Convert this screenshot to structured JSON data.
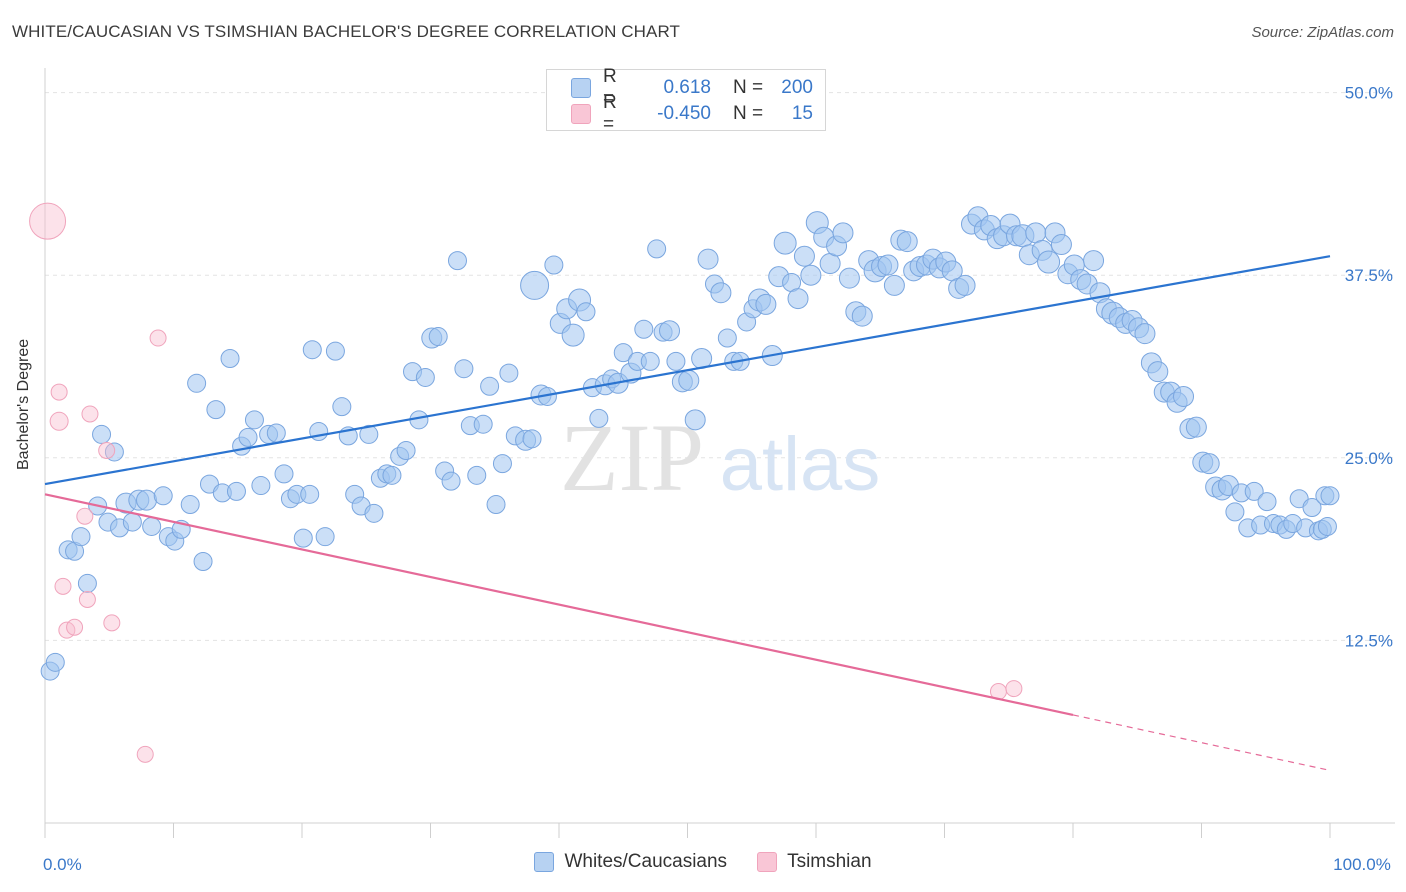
{
  "title": "WHITE/CAUCASIAN VS TSIMSHIAN BACHELOR'S DEGREE CORRELATION CHART",
  "source": "Source: ZipAtlas.com",
  "watermark": {
    "zip": "ZIP",
    "atlas": "atlas"
  },
  "colors": {
    "blue_fill": "rgba(160,196,240,0.55)",
    "blue_stroke": "#7aa6df",
    "blue_line": "#2b74d0",
    "pink_fill": "rgba(248,190,208,0.45)",
    "pink_stroke": "#f0a4bc",
    "pink_line": "#e56a98",
    "tick_text": "#3a78c9",
    "grid": "#e3e3e3"
  },
  "legend": {
    "rows": [
      {
        "r_label": "R =",
        "r_value": "0.618",
        "n_label": "N =",
        "n_value": "200"
      },
      {
        "r_label": "R =",
        "r_value": "-0.450",
        "n_label": "N =",
        "n_value": "15"
      }
    ]
  },
  "bottom_legend": {
    "white": "Whites/Caucasians",
    "tsimshian": "Tsimshian"
  },
  "chart_data": {
    "type": "scatter",
    "xlabel": "",
    "ylabel": "Bachelor's Degree",
    "xlim": [
      0,
      100
    ],
    "ylim": [
      0,
      51
    ],
    "x_tick_labels": [
      {
        "value": 0,
        "label": "0.0%"
      },
      {
        "value": 100,
        "label": "100.0%"
      }
    ],
    "y_ticks": [
      {
        "value": 12.5,
        "label": "12.5%"
      },
      {
        "value": 25.0,
        "label": "25.0%"
      },
      {
        "value": 37.5,
        "label": "37.5%"
      },
      {
        "value": 50.0,
        "label": "50.0%"
      }
    ],
    "grid": true,
    "series": [
      {
        "name": "Whites/Caucasians",
        "trend": {
          "x": [
            0,
            100
          ],
          "y": [
            23.2,
            38.8
          ]
        },
        "points": [
          [
            0.4,
            10.4,
            9
          ],
          [
            0.8,
            11.0,
            9
          ],
          [
            1.8,
            18.7,
            9
          ],
          [
            2.3,
            18.6,
            9
          ],
          [
            2.8,
            19.6,
            9
          ],
          [
            3.3,
            16.4,
            9
          ],
          [
            4.1,
            21.7,
            9
          ],
          [
            4.4,
            26.6,
            9
          ],
          [
            4.9,
            20.6,
            9
          ],
          [
            5.4,
            25.4,
            9
          ],
          [
            5.8,
            20.2,
            9
          ],
          [
            6.3,
            21.9,
            10
          ],
          [
            6.8,
            20.6,
            9
          ],
          [
            7.3,
            22.1,
            10
          ],
          [
            7.9,
            22.1,
            10
          ],
          [
            8.3,
            20.3,
            9
          ],
          [
            9.2,
            22.4,
            9
          ],
          [
            9.6,
            19.6,
            9
          ],
          [
            10.1,
            19.3,
            9
          ],
          [
            10.6,
            20.1,
            9
          ],
          [
            11.3,
            21.8,
            9
          ],
          [
            11.8,
            30.1,
            9
          ],
          [
            12.3,
            17.9,
            9
          ],
          [
            12.8,
            23.2,
            9
          ],
          [
            13.3,
            28.3,
            9
          ],
          [
            13.8,
            22.6,
            9
          ],
          [
            14.4,
            31.8,
            9
          ],
          [
            14.9,
            22.7,
            9
          ],
          [
            15.3,
            25.8,
            9
          ],
          [
            15.8,
            26.4,
            9
          ],
          [
            16.3,
            27.6,
            9
          ],
          [
            16.8,
            23.1,
            9
          ],
          [
            17.4,
            26.6,
            9
          ],
          [
            18.0,
            26.7,
            9
          ],
          [
            18.6,
            23.9,
            9
          ],
          [
            19.1,
            22.2,
            9
          ],
          [
            19.6,
            22.5,
            9
          ],
          [
            20.1,
            19.5,
            9
          ],
          [
            20.6,
            22.5,
            9
          ],
          [
            20.8,
            32.4,
            9
          ],
          [
            21.3,
            26.8,
            9
          ],
          [
            21.8,
            19.6,
            9
          ],
          [
            22.6,
            32.3,
            9
          ],
          [
            23.1,
            28.5,
            9
          ],
          [
            23.6,
            26.5,
            9
          ],
          [
            24.1,
            22.5,
            9
          ],
          [
            24.6,
            21.7,
            9
          ],
          [
            25.2,
            26.6,
            9
          ],
          [
            25.6,
            21.2,
            9
          ],
          [
            26.1,
            23.6,
            9
          ],
          [
            26.6,
            23.9,
            9
          ],
          [
            27.0,
            23.8,
            9
          ],
          [
            27.6,
            25.1,
            9
          ],
          [
            28.1,
            25.5,
            9
          ],
          [
            28.6,
            30.9,
            9
          ],
          [
            29.1,
            27.6,
            9
          ],
          [
            29.6,
            30.5,
            9
          ],
          [
            30.1,
            33.2,
            10
          ],
          [
            30.6,
            33.3,
            9
          ],
          [
            31.1,
            24.1,
            9
          ],
          [
            31.6,
            23.4,
            9
          ],
          [
            32.1,
            38.5,
            9
          ],
          [
            32.6,
            31.1,
            9
          ],
          [
            33.1,
            27.2,
            9
          ],
          [
            33.6,
            23.8,
            9
          ],
          [
            34.1,
            27.3,
            9
          ],
          [
            34.6,
            29.9,
            9
          ],
          [
            35.1,
            21.8,
            9
          ],
          [
            35.6,
            24.6,
            9
          ],
          [
            36.1,
            30.8,
            9
          ],
          [
            36.6,
            26.5,
            9
          ],
          [
            37.4,
            26.2,
            10
          ],
          [
            37.9,
            26.3,
            9
          ],
          [
            38.1,
            36.8,
            14
          ],
          [
            38.6,
            29.3,
            10
          ],
          [
            39.1,
            29.2,
            9
          ],
          [
            39.6,
            38.2,
            9
          ],
          [
            40.1,
            34.2,
            10
          ],
          [
            40.6,
            35.2,
            10
          ],
          [
            41.1,
            33.4,
            11
          ],
          [
            41.6,
            35.8,
            11
          ],
          [
            42.1,
            35.0,
            9
          ],
          [
            42.6,
            29.8,
            9
          ],
          [
            43.1,
            27.7,
            9
          ],
          [
            43.6,
            30.0,
            10
          ],
          [
            44.1,
            30.4,
            9
          ],
          [
            44.6,
            30.1,
            10
          ],
          [
            45.0,
            32.2,
            9
          ],
          [
            45.6,
            30.8,
            10
          ],
          [
            46.1,
            31.6,
            9
          ],
          [
            46.6,
            33.8,
            9
          ],
          [
            47.1,
            31.6,
            9
          ],
          [
            47.6,
            39.3,
            9
          ],
          [
            48.1,
            33.6,
            9
          ],
          [
            48.6,
            33.7,
            10
          ],
          [
            49.1,
            31.6,
            9
          ],
          [
            49.6,
            30.2,
            10
          ],
          [
            50.1,
            30.3,
            10
          ],
          [
            50.6,
            27.6,
            10
          ],
          [
            51.1,
            31.8,
            10
          ],
          [
            51.6,
            38.6,
            10
          ],
          [
            52.1,
            36.9,
            9
          ],
          [
            52.6,
            36.3,
            10
          ],
          [
            53.1,
            33.2,
            9
          ],
          [
            53.6,
            31.6,
            9
          ],
          [
            54.1,
            31.6,
            9
          ],
          [
            54.6,
            34.3,
            9
          ],
          [
            55.1,
            35.2,
            9
          ],
          [
            55.6,
            35.8,
            11
          ],
          [
            56.1,
            35.5,
            10
          ],
          [
            56.6,
            32.0,
            10
          ],
          [
            57.1,
            37.4,
            10
          ],
          [
            57.6,
            39.7,
            11
          ],
          [
            58.1,
            37.0,
            9
          ],
          [
            58.6,
            35.9,
            10
          ],
          [
            59.1,
            38.8,
            10
          ],
          [
            59.6,
            37.5,
            10
          ],
          [
            60.1,
            41.1,
            11
          ],
          [
            60.6,
            40.1,
            10
          ],
          [
            61.1,
            38.3,
            10
          ],
          [
            61.6,
            39.5,
            10
          ],
          [
            62.1,
            40.4,
            10
          ],
          [
            62.6,
            37.3,
            10
          ],
          [
            63.1,
            35.0,
            10
          ],
          [
            63.6,
            34.7,
            10
          ],
          [
            64.1,
            38.5,
            10
          ],
          [
            64.6,
            37.8,
            11
          ],
          [
            65.1,
            38.1,
            10
          ],
          [
            65.6,
            38.2,
            10
          ],
          [
            66.1,
            36.8,
            10
          ],
          [
            66.6,
            39.9,
            10
          ],
          [
            67.1,
            39.8,
            10
          ],
          [
            67.6,
            37.8,
            10
          ],
          [
            68.1,
            38.1,
            10
          ],
          [
            68.6,
            38.2,
            10
          ],
          [
            69.1,
            38.6,
            10
          ],
          [
            69.6,
            38.0,
            10
          ],
          [
            70.1,
            38.4,
            10
          ],
          [
            70.6,
            37.8,
            10
          ],
          [
            71.1,
            36.6,
            10
          ],
          [
            71.6,
            36.8,
            10
          ],
          [
            72.1,
            41.0,
            10
          ],
          [
            72.6,
            41.5,
            10
          ],
          [
            73.1,
            40.6,
            10
          ],
          [
            73.6,
            40.9,
            10
          ],
          [
            74.1,
            40.0,
            10
          ],
          [
            74.6,
            40.2,
            10
          ],
          [
            75.1,
            41.0,
            10
          ],
          [
            75.6,
            40.2,
            10
          ],
          [
            76.1,
            40.2,
            11
          ],
          [
            76.6,
            38.9,
            10
          ],
          [
            77.1,
            40.4,
            10
          ],
          [
            77.6,
            39.2,
            10
          ],
          [
            78.1,
            38.4,
            11
          ],
          [
            78.6,
            40.4,
            10
          ],
          [
            79.1,
            39.6,
            10
          ],
          [
            79.6,
            37.6,
            10
          ],
          [
            80.1,
            38.2,
            10
          ],
          [
            80.6,
            37.2,
            10
          ],
          [
            81.1,
            36.9,
            10
          ],
          [
            81.6,
            38.5,
            10
          ],
          [
            82.1,
            36.3,
            10
          ],
          [
            82.6,
            35.2,
            10
          ],
          [
            83.1,
            34.9,
            11
          ],
          [
            83.6,
            34.6,
            10
          ],
          [
            84.1,
            34.2,
            10
          ],
          [
            84.6,
            34.4,
            10
          ],
          [
            85.1,
            33.9,
            10
          ],
          [
            85.6,
            33.5,
            10
          ],
          [
            86.1,
            31.5,
            10
          ],
          [
            86.6,
            30.9,
            10
          ],
          [
            87.1,
            29.5,
            10
          ],
          [
            87.6,
            29.5,
            10
          ],
          [
            88.1,
            28.8,
            10
          ],
          [
            88.6,
            29.2,
            10
          ],
          [
            89.1,
            27.0,
            10
          ],
          [
            89.6,
            27.1,
            10
          ],
          [
            90.1,
            24.7,
            10
          ],
          [
            90.6,
            24.6,
            10
          ],
          [
            91.1,
            23.0,
            10
          ],
          [
            91.6,
            22.8,
            10
          ],
          [
            92.1,
            23.1,
            10
          ],
          [
            92.6,
            21.3,
            9
          ],
          [
            93.1,
            22.6,
            9
          ],
          [
            93.6,
            20.2,
            9
          ],
          [
            94.1,
            22.7,
            9
          ],
          [
            94.6,
            20.4,
            9
          ],
          [
            95.1,
            22.0,
            9
          ],
          [
            95.6,
            20.5,
            9
          ],
          [
            96.1,
            20.4,
            9
          ],
          [
            96.6,
            20.1,
            9
          ],
          [
            97.1,
            20.5,
            9
          ],
          [
            97.6,
            22.2,
            9
          ],
          [
            98.1,
            20.2,
            9
          ],
          [
            98.6,
            21.6,
            9
          ],
          [
            99.1,
            20.0,
            9
          ],
          [
            99.4,
            20.1,
            9
          ],
          [
            99.6,
            22.4,
            9
          ],
          [
            99.8,
            20.3,
            9
          ],
          [
            100.0,
            22.4,
            9
          ]
        ]
      },
      {
        "name": "Tsimshian",
        "trend": {
          "x": [
            0,
            80
          ],
          "y": [
            22.5,
            7.4
          ],
          "dash_x": [
            80,
            100
          ],
          "dash_y": [
            7.4,
            3.6
          ]
        },
        "points": [
          [
            0.2,
            41.2,
            18
          ],
          [
            1.1,
            27.5,
            9
          ],
          [
            1.1,
            29.5,
            8
          ],
          [
            1.4,
            16.2,
            8
          ],
          [
            1.7,
            13.2,
            8
          ],
          [
            2.3,
            13.4,
            8
          ],
          [
            3.1,
            21.0,
            8
          ],
          [
            3.3,
            15.3,
            8
          ],
          [
            3.5,
            28.0,
            8
          ],
          [
            4.8,
            25.5,
            8
          ],
          [
            5.2,
            13.7,
            8
          ],
          [
            7.8,
            4.7,
            8
          ],
          [
            8.8,
            33.2,
            8
          ],
          [
            74.2,
            9.0,
            8
          ],
          [
            75.4,
            9.2,
            8
          ]
        ]
      }
    ]
  }
}
